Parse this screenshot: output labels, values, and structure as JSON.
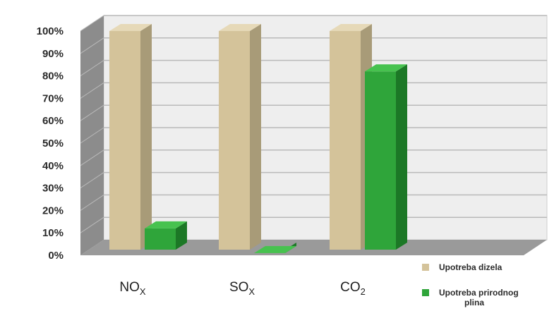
{
  "chart_data": {
    "type": "bar",
    "categories": [
      {
        "main": "NO",
        "sub": "X"
      },
      {
        "main": "SO",
        "sub": "X"
      },
      {
        "main": "CO",
        "sub": "2"
      }
    ],
    "series": [
      {
        "name": "Upotreba dizela",
        "values": [
          100,
          100,
          100
        ],
        "color": "#d4c39a",
        "side": "#a89b78",
        "top": "#e6d9b8"
      },
      {
        "name": "Upotreba prirodnog plina",
        "values": [
          12,
          1,
          82
        ],
        "color": "#2fa53a",
        "side": "#1c7826",
        "top": "#47c24f"
      }
    ],
    "y_ticks": [
      "0%",
      "10%",
      "20%",
      "30%",
      "40%",
      "50%",
      "60%",
      "70%",
      "80%",
      "90%",
      "100%"
    ],
    "ylim": [
      0,
      100
    ],
    "grid": true,
    "legend_position": "bottom-right",
    "style": "3d"
  }
}
